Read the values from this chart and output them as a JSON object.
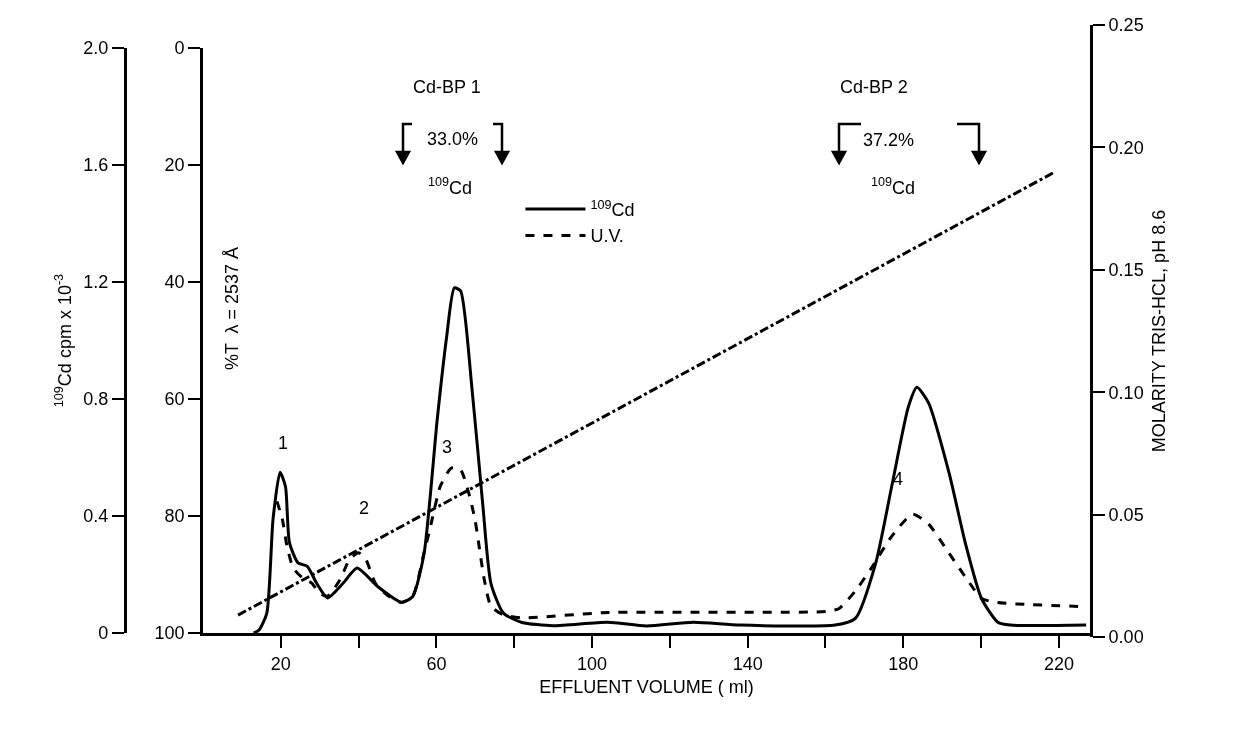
{
  "chart_data": {
    "type": "line",
    "xlabel": "EFFLUENT VOLUME ( ml)",
    "ylabel": "$^{109}$Cd cpm x 10$^{-3}$",
    "y2label": "%T  λ = 2537 Å",
    "y3label": "MOLARITY TRIS-HCL, pH 8.6",
    "xlim": [
      0,
      228
    ],
    "xticks": [
      20,
      {
        "value": 40,
        "label": null
      },
      60,
      {
        "value": 80,
        "label": null
      },
      100,
      {
        "value": 120,
        "label": null
      },
      140,
      {
        "value": 160,
        "label": null
      },
      180,
      {
        "value": 200,
        "label": null
      },
      220
    ],
    "ylim": [
      0,
      2
    ],
    "yticks": [
      0,
      0.4,
      0.8,
      1.2,
      1.6,
      {
        "value": 2,
        "label": "2.0"
      }
    ],
    "y2lim": [
      100,
      0
    ],
    "y2ticks": [
      0,
      20,
      40,
      60,
      80,
      100
    ],
    "y3lim": [
      0,
      0.25
    ],
    "y3ticks": [
      {
        "value": 0,
        "label": "0.00"
      },
      {
        "value": 0.05,
        "label": "0.05"
      },
      {
        "value": 0.1,
        "label": "0.10"
      },
      {
        "value": 0.15,
        "label": "0.15"
      },
      {
        "value": 0.2,
        "label": "0.20"
      },
      {
        "value": 0.25,
        "label": "0.25"
      }
    ],
    "grid": false,
    "legend": "top",
    "marker": "none",
    "series": [
      {
        "name": "$^{109}$Cd",
        "color": "#000000",
        "line_style": "solid",
        "x": [
          13,
          14.4,
          16.4,
          18,
          19.8,
          21.2,
          22.2,
          24.4,
          26.8,
          29.2,
          32,
          36,
          39.6,
          44.8,
          51,
          53.9,
          56.8,
          60.2,
          62.6,
          64.6,
          66.2,
          69.1,
          71.9,
          74,
          77.2,
          82,
          90,
          104,
          114,
          126,
          138,
          162.5,
          167.7,
          172.9,
          177.1,
          181.3,
          183.5,
          186.5,
          191.8,
          196,
          200.1,
          204.3,
          207.5,
          227
        ],
        "values": [
          0,
          0.01,
          0.068,
          0.39,
          0.55,
          0.5,
          0.31,
          0.24,
          0.228,
          0.17,
          0.12,
          0.17,
          0.222,
          0.16,
          0.105,
          0.125,
          0.27,
          0.73,
          1.01,
          1.18,
          1.17,
          0.84,
          0.44,
          0.17,
          0.068,
          0.036,
          0.025,
          0.037,
          0.024,
          0.037,
          0.027,
          0.027,
          0.05,
          0.238,
          0.506,
          0.773,
          0.84,
          0.787,
          0.546,
          0.305,
          0.118,
          0.037,
          0.027,
          0.027
        ]
      },
      {
        "name": "U.V.",
        "color": "#000000",
        "line_style": "dashed",
        "axis": "y2",
        "x": [
          19,
          20.4,
          21.6,
          23.2,
          25.6,
          28,
          30,
          32,
          35.2,
          37.6,
          40,
          41.9,
          44.3,
          47.7,
          51,
          53.9,
          56.8,
          58.3,
          61,
          63.8,
          66.2,
          68.3,
          69.9,
          72.3,
          74,
          77.2,
          82,
          104,
          160.4,
          163.5,
          167.7,
          171.9,
          177.1,
          182.4,
          186.5,
          191.8,
          197,
          200.1,
          204.3,
          227
        ],
        "values": [
          77.5,
          80.6,
          85.2,
          88.9,
          90.6,
          91.5,
          93.2,
          93.7,
          90.9,
          87.5,
          86.3,
          87.5,
          91.5,
          93.7,
          94.8,
          93.7,
          86.3,
          82.3,
          74.9,
          71.8,
          72.1,
          76.1,
          80.6,
          90.9,
          95.4,
          96.9,
          97.4,
          96.5,
          96.3,
          95.8,
          92.8,
          88.8,
          83.4,
          79.7,
          81.4,
          86.4,
          91.4,
          94.1,
          94.8,
          95.5
        ]
      },
      {
        "color": "#000000",
        "line_style": "dashdot",
        "axis": "y3",
        "x": [
          9,
          219
        ],
        "values": [
          0.009,
          0.19
        ]
      }
    ],
    "annotations": [
      "Cd-BP 1",
      "33.0%",
      "$^{109}$Cd",
      "Cd-BP 2",
      "37.2%",
      "$^{109}$Cd",
      "1",
      "2",
      "3",
      "4"
    ]
  }
}
